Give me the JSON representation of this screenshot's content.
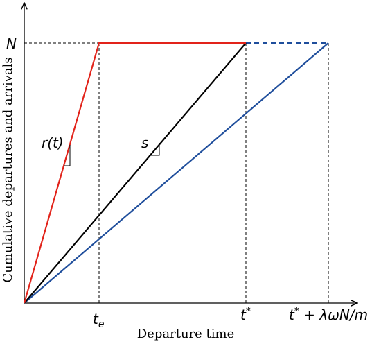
{
  "diagram": {
    "ylabel": "Cumulative departures and arrivals",
    "xlabel": "Departure time",
    "y_tick_label": "N",
    "x_tick_labels": {
      "te": "t_e",
      "tstar": "t*",
      "tstar_plus": "t* + λωN/m"
    },
    "slope_labels": {
      "red": "r(t)",
      "black": "s"
    },
    "colors": {
      "red": "#e2231a",
      "black": "#000000",
      "blue": "#1f4e9c"
    }
  }
}
